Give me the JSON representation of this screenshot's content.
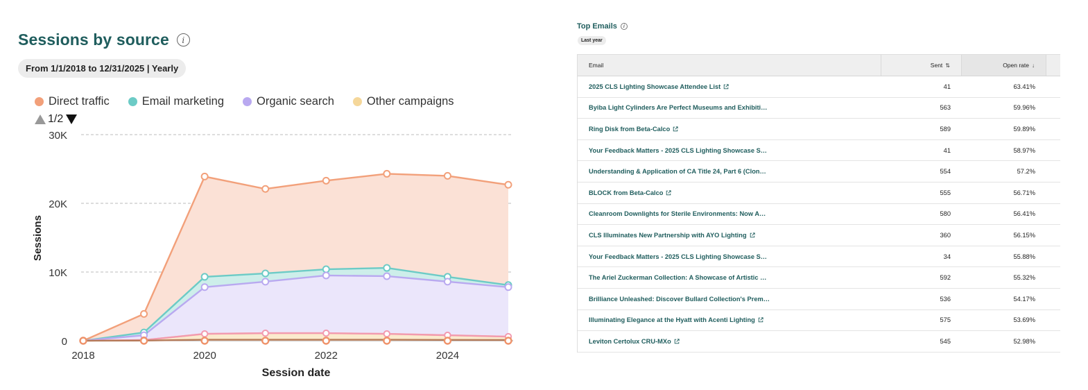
{
  "left_panel": {
    "title": "Sessions by source",
    "date_range": "From 1/1/2018 to 12/31/2025 | Yearly",
    "pager": "1/2"
  },
  "chart_data": {
    "type": "area",
    "xlabel": "Session date",
    "ylabel": "Sessions",
    "x": [
      2018,
      2019,
      2020,
      2021,
      2022,
      2023,
      2024,
      2025
    ],
    "x_ticks": [
      "2018",
      "2020",
      "2022",
      "2024"
    ],
    "y_ticks": [
      "0",
      "10K",
      "20K",
      "30K"
    ],
    "ylim": [
      0,
      30000
    ],
    "grid": "horizontal dashed",
    "legend_position": "top-left",
    "series": [
      {
        "name": "Direct traffic",
        "color": "#f2a07a",
        "fill": "#fbe1d6",
        "values": [
          0,
          3900,
          23900,
          22100,
          23300,
          24300,
          24000,
          22700
        ]
      },
      {
        "name": "Email marketing",
        "color": "#6ccbc6",
        "fill": "#cdeeea",
        "values": [
          0,
          1200,
          9300,
          9800,
          10400,
          10600,
          9300,
          8100
        ]
      },
      {
        "name": "Organic search",
        "color": "#b9a9f0",
        "fill": "#ebe6fb",
        "values": [
          0,
          800,
          7800,
          8600,
          9500,
          9400,
          8600,
          7800
        ]
      },
      {
        "name": "Other campaigns",
        "color": "#f5d79a",
        "fill": "#fbeacd",
        "values": [
          0,
          100,
          1000,
          1100,
          1100,
          1000,
          800,
          600
        ]
      }
    ],
    "extra_lines": [
      {
        "color": "#f29ab0",
        "values": [
          0,
          100,
          1000,
          1100,
          1100,
          1000,
          800,
          600
        ]
      },
      {
        "color": "#b57b5a",
        "values": [
          0,
          20,
          150,
          150,
          150,
          150,
          120,
          100
        ]
      }
    ]
  },
  "right_panel": {
    "title": "Top Emails",
    "badge": "Last year",
    "columns": {
      "email": "Email",
      "sent": "Sent",
      "open_rate": "Open rate"
    },
    "rows": [
      {
        "email": "2025 CLS Lighting Showcase Attendee List",
        "sent": "41",
        "open_rate": "63.41%",
        "link": true
      },
      {
        "email": "Byiba Light Cylinders Are Perfect Museums and Exhibiti…",
        "sent": "563",
        "open_rate": "59.96%",
        "link": false
      },
      {
        "email": "Ring Disk from Beta-Calco",
        "sent": "589",
        "open_rate": "59.89%",
        "link": true
      },
      {
        "email": "Your Feedback Matters - 2025 CLS Lighting Showcase S…",
        "sent": "41",
        "open_rate": "58.97%",
        "link": false
      },
      {
        "email": "Understanding & Application of CA Title 24, Part 6 (Clon…",
        "sent": "554",
        "open_rate": "57.2%",
        "link": false
      },
      {
        "email": "BLOCK from Beta-Calco",
        "sent": "555",
        "open_rate": "56.71%",
        "link": true
      },
      {
        "email": "Cleanroom Downlights for Sterile Environments: Now A…",
        "sent": "580",
        "open_rate": "56.41%",
        "link": false
      },
      {
        "email": "CLS Illuminates New Partnership with AYO Lighting",
        "sent": "360",
        "open_rate": "56.15%",
        "link": true
      },
      {
        "email": "Your Feedback Matters - 2025 CLS Lighting Showcase S…",
        "sent": "34",
        "open_rate": "55.88%",
        "link": false
      },
      {
        "email": "The Ariel Zuckerman Collection: A Showcase of Artistic …",
        "sent": "592",
        "open_rate": "55.32%",
        "link": false
      },
      {
        "email": "Brilliance Unleashed: Discover Bullard Collection's Prem…",
        "sent": "536",
        "open_rate": "54.17%",
        "link": false
      },
      {
        "email": "Illuminating Elegance at the Hyatt with Acenti Lighting",
        "sent": "575",
        "open_rate": "53.69%",
        "link": true
      },
      {
        "email": "Leviton Certolux CRU-MXo",
        "sent": "545",
        "open_rate": "52.98%",
        "link": true
      }
    ]
  }
}
